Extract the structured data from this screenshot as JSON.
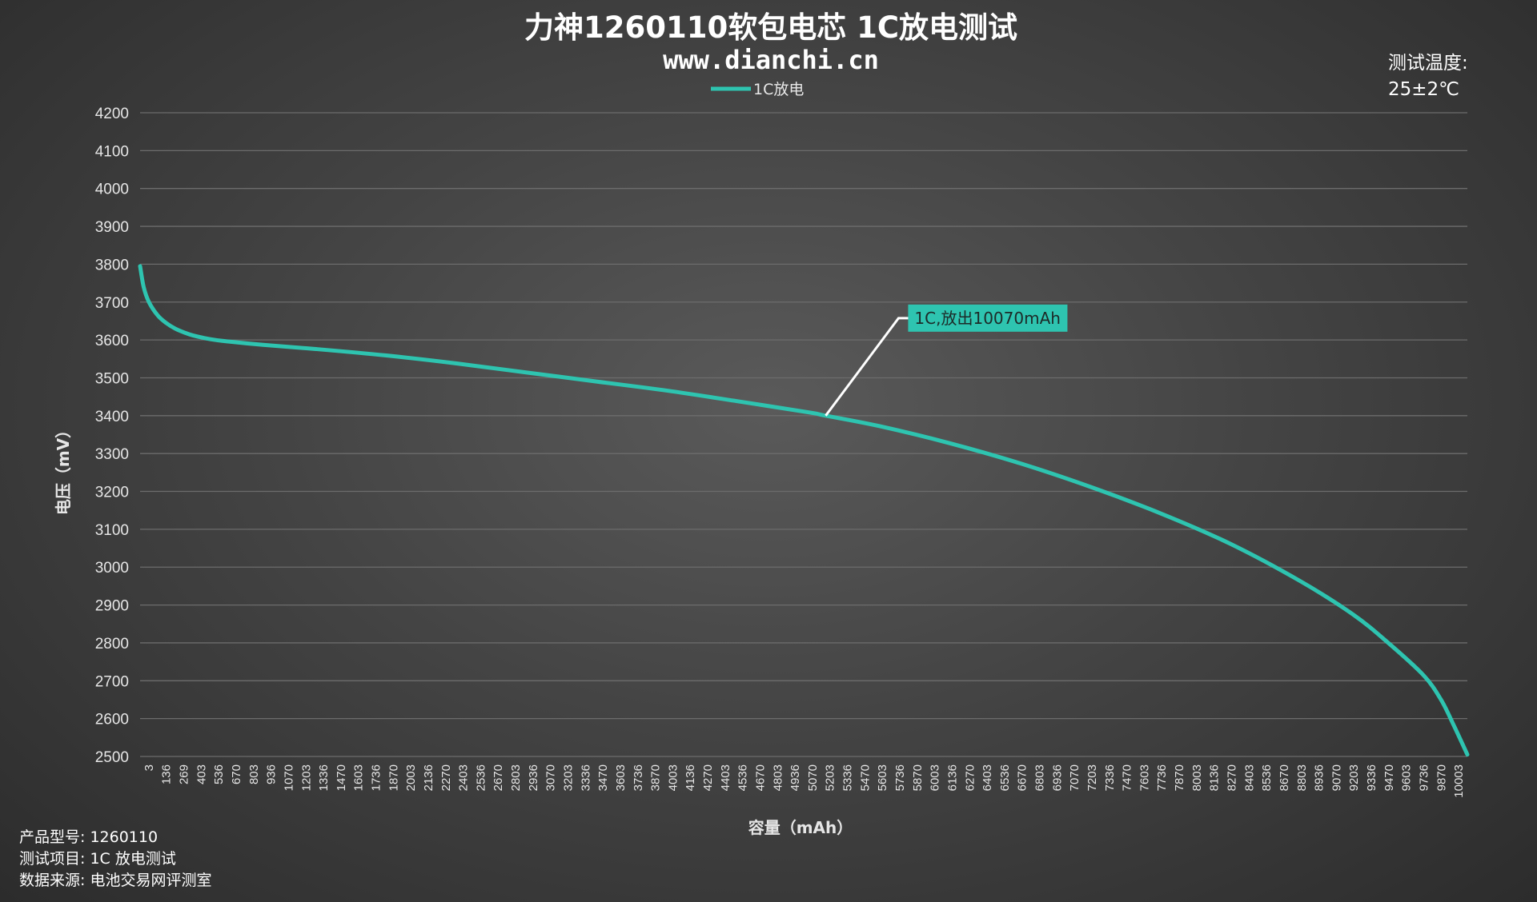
{
  "chart_data": {
    "type": "line",
    "title": "力神1260110软包电芯 1C放电测试",
    "subtitle": "www.dianchi.cn",
    "xlabel": "容量（mAh）",
    "ylabel": "电压（mV）",
    "ylim": [
      2500,
      4200
    ],
    "yticks": [
      "4200",
      "4100",
      "4000",
      "3900",
      "3800",
      "3700",
      "3600",
      "3500",
      "3400",
      "3300",
      "3200",
      "3100",
      "3000",
      "2900",
      "2800",
      "2700",
      "2600",
      "2500"
    ],
    "xticks": [
      "3",
      "136",
      "269",
      "403",
      "536",
      "670",
      "803",
      "936",
      "1070",
      "1203",
      "1336",
      "1470",
      "1603",
      "1736",
      "1870",
      "2003",
      "2136",
      "2270",
      "2403",
      "2536",
      "2670",
      "2803",
      "2936",
      "3070",
      "3203",
      "3336",
      "3470",
      "3603",
      "3736",
      "3870",
      "4003",
      "4136",
      "4270",
      "4403",
      "4536",
      "4670",
      "4803",
      "4936",
      "5070",
      "5203",
      "5336",
      "5470",
      "5603",
      "5736",
      "5870",
      "6003",
      "6136",
      "6270",
      "6403",
      "6536",
      "6670",
      "6803",
      "6936",
      "7070",
      "7203",
      "7336",
      "7470",
      "7603",
      "7736",
      "7870",
      "8003",
      "8136",
      "8270",
      "8403",
      "8536",
      "8670",
      "8803",
      "8936",
      "9070",
      "9203",
      "9336",
      "9470",
      "9603",
      "9736",
      "9870",
      "10003"
    ],
    "xlim": [
      3,
      10070
    ],
    "grid": true,
    "legend_position": "top-center",
    "series": [
      {
        "name": "1C放电",
        "color": "#2ec4b0",
        "x": [
          3,
          30,
          70,
          136,
          200,
          269,
          336,
          403,
          536,
          670,
          936,
          1336,
          1870,
          2403,
          2936,
          3470,
          4003,
          4536,
          5070,
          5203,
          5603,
          6136,
          6670,
          7203,
          7736,
          8270,
          8803,
          9203,
          9470,
          9736,
          9870,
          9970,
          10070
        ],
        "values": [
          3795,
          3740,
          3700,
          3665,
          3645,
          3630,
          3620,
          3612,
          3602,
          3596,
          3587,
          3576,
          3559,
          3538,
          3514,
          3490,
          3466,
          3438,
          3409,
          3400,
          3373,
          3328,
          3275,
          3213,
          3143,
          3062,
          2963,
          2875,
          2800,
          2715,
          2650,
          2580,
          2505
        ]
      }
    ],
    "annotation": {
      "text": "1C,放出10070mAh",
      "x": 5203,
      "y": 3400
    }
  },
  "legend": {
    "label": "1C放电"
  },
  "temperature": {
    "line1": "测试温度:",
    "line2": "25±2℃"
  },
  "info": {
    "model": "产品型号: 1260110",
    "item": "测试项目: 1C 放电测试",
    "source": "数据来源: 电池交易网评测室"
  },
  "colors": {
    "accent": "#2ec4b0",
    "annotation_leader": "#ffffff"
  }
}
